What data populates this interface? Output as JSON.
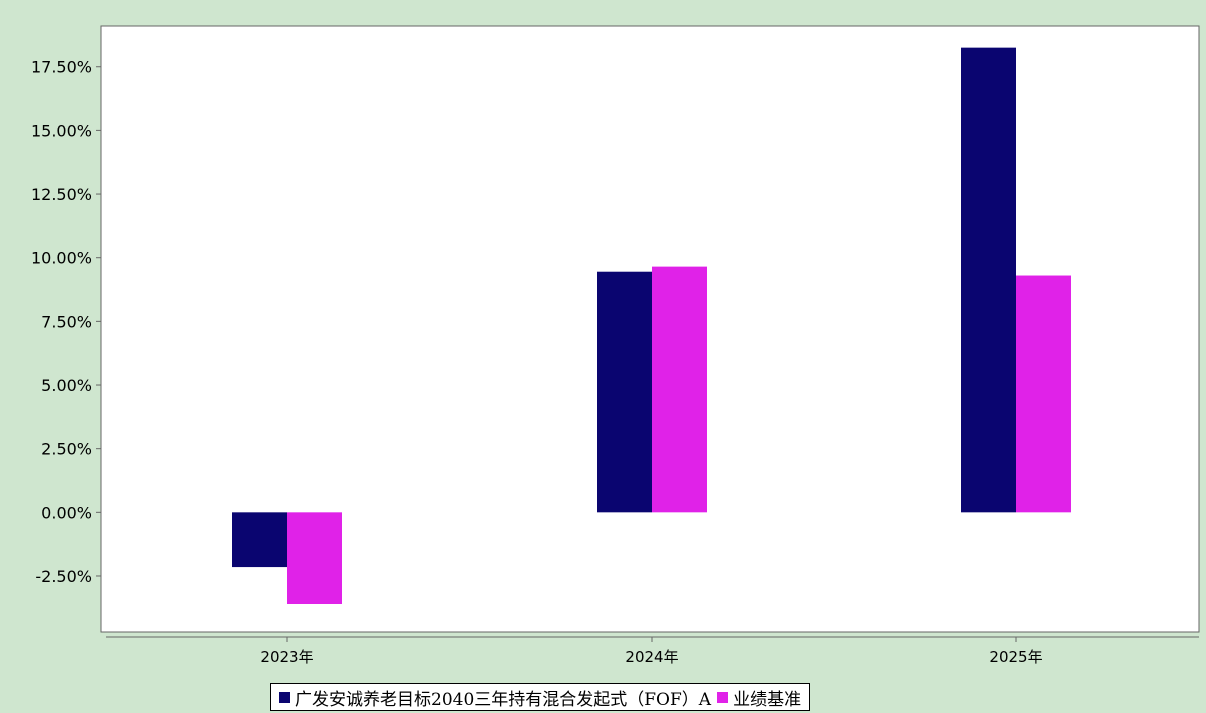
{
  "chart_data": {
    "type": "bar",
    "categories": [
      "2023年",
      "2024年",
      "2025年"
    ],
    "series": [
      {
        "name": "广发安诚养老目标2040三年持有混合发起式（FOF）A",
        "values": [
          -2.15,
          9.45,
          18.25
        ],
        "color": "#0a0570"
      },
      {
        "name": "业绩基准",
        "values": [
          -3.6,
          9.65,
          9.3
        ],
        "color": "#e022e8"
      }
    ],
    "yticks": [
      "17.50%",
      "15.00%",
      "12.50%",
      "10.00%",
      "7.50%",
      "5.00%",
      "2.50%",
      "0.00%",
      "-2.50%"
    ],
    "ylim": [
      -4.7,
      19.1
    ],
    "grid": false,
    "legend_position": "bottom",
    "colors": {
      "background": "#cfe6cf",
      "plot_background": "#ffffff",
      "axis": "#666666"
    }
  }
}
